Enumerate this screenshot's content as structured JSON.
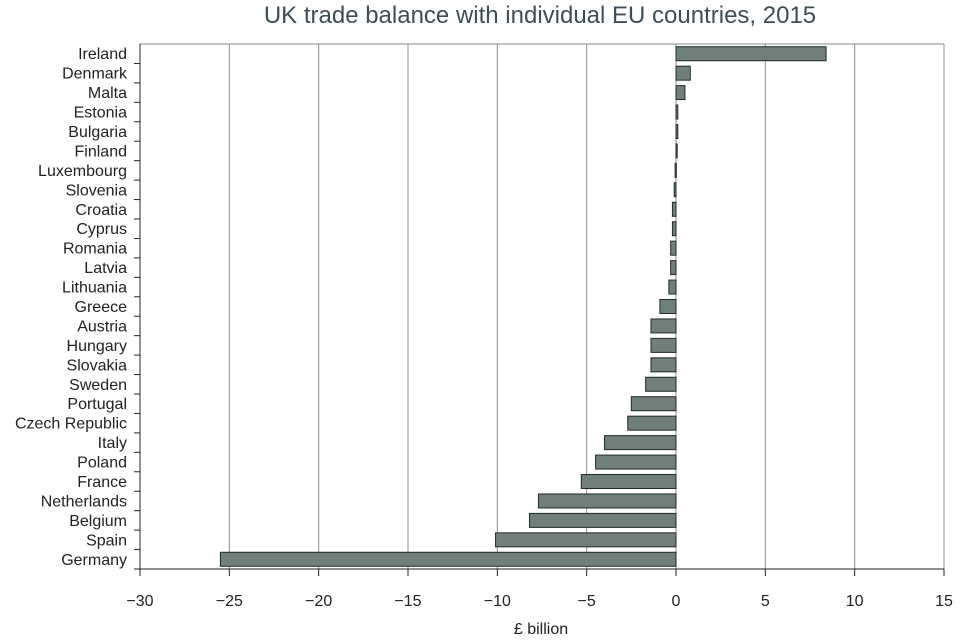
{
  "chart_data": {
    "type": "bar",
    "orientation": "horizontal",
    "title": "UK trade balance with individual EU countries, 2015",
    "xlabel": "£ billion",
    "ylabel": "",
    "xlim": [
      -30,
      15
    ],
    "xticks": [
      -30,
      -25,
      -20,
      -15,
      -10,
      -5,
      0,
      5,
      10,
      15
    ],
    "xtick_labels": [
      "−30",
      "−25",
      "−20",
      "−15",
      "−10",
      "−5",
      "0",
      "5",
      "10",
      "15"
    ],
    "grid": "vertical",
    "categories": [
      "Ireland",
      "Denmark",
      "Malta",
      "Estonia",
      "Bulgaria",
      "Finland",
      "Luxembourg",
      "Slovenia",
      "Croatia",
      "Cyprus",
      "Romania",
      "Latvia",
      "Lithuania",
      "Greece",
      "Austria",
      "Hungary",
      "Slovakia",
      "Sweden",
      "Portugal",
      "Czech Republic",
      "Italy",
      "Poland",
      "France",
      "Netherlands",
      "Belgium",
      "Spain",
      "Germany"
    ],
    "values": [
      8.4,
      0.8,
      0.5,
      0.1,
      0.1,
      0.05,
      -0.05,
      -0.1,
      -0.2,
      -0.2,
      -0.3,
      -0.3,
      -0.4,
      -0.9,
      -1.4,
      -1.4,
      -1.4,
      -1.7,
      -2.5,
      -2.7,
      -4.0,
      -4.5,
      -5.3,
      -7.7,
      -8.2,
      -10.1,
      -25.5
    ],
    "bar_color": "#717f7b",
    "bar_edge_color": "#1f2a2c"
  }
}
